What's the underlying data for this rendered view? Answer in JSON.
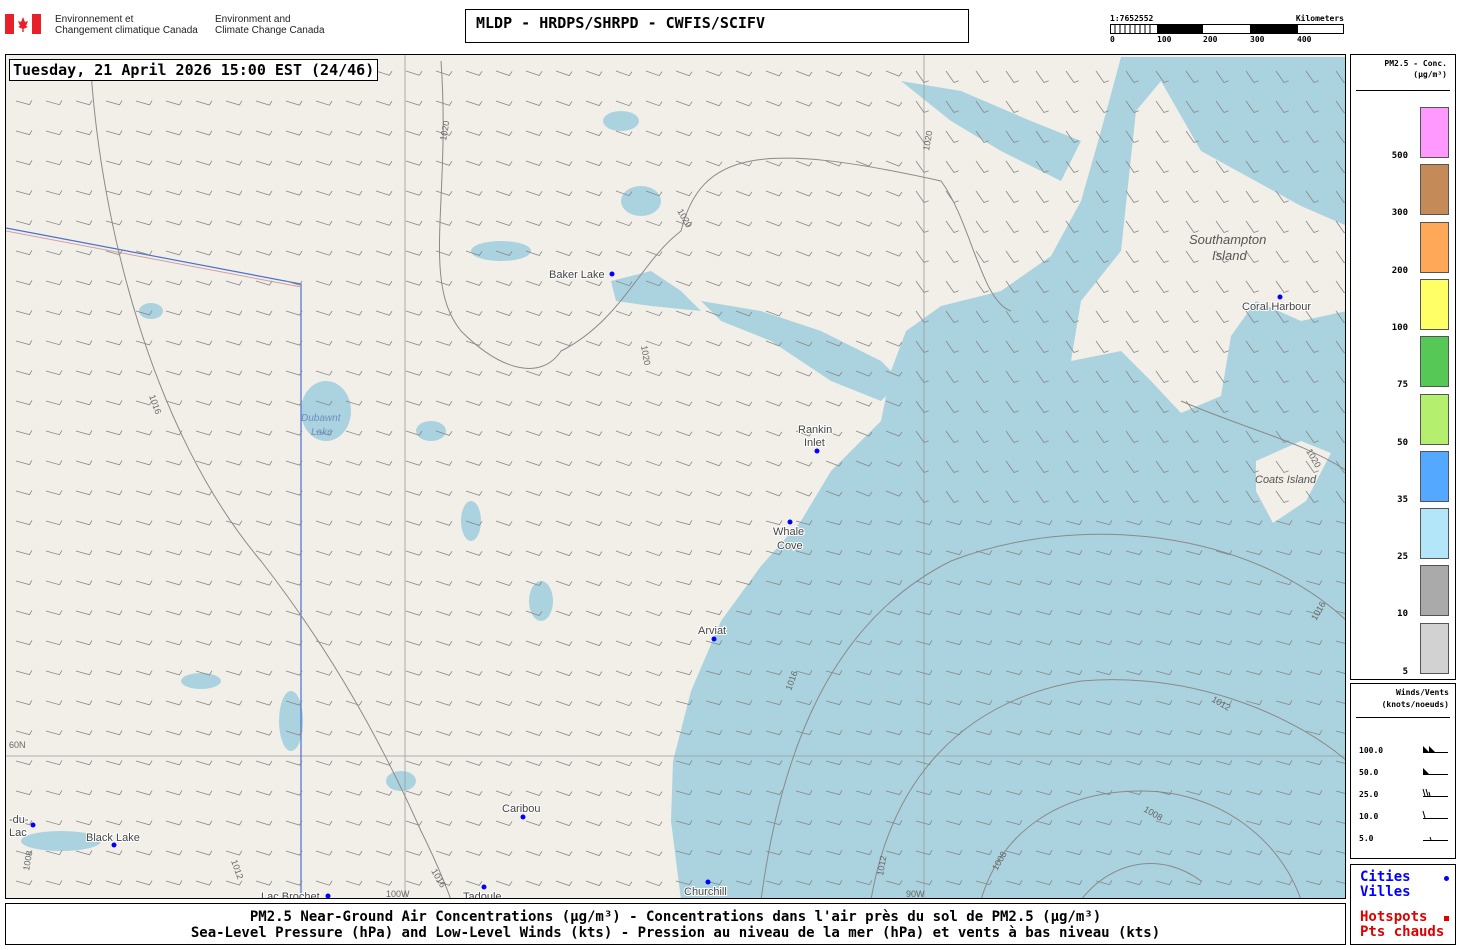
{
  "header": {
    "logo_fr": [
      "Environnement et",
      "Changement climatique Canada"
    ],
    "logo_en": [
      "Environment and",
      "Climate Change Canada"
    ],
    "title": "MLDP - HRDPS/SHRPD - CWFIS/SCIFV",
    "scale": {
      "ratio": "1:7652552",
      "unit": "Kilometers",
      "ticks": [
        "0",
        "100",
        "200",
        "300",
        "400"
      ]
    }
  },
  "map": {
    "timestamp": "Tuesday, 21 April 2026 15:00 EST (24/46)",
    "colors": {
      "land": "#f2efe9",
      "water": "#aad3df",
      "city_dot": "#0000ff"
    },
    "cities": [
      {
        "name": "Baker Lake",
        "lines": [
          "Baker Lake"
        ]
      },
      {
        "name": "Rankin Inlet",
        "lines": [
          "Rankin",
          "Inlet"
        ]
      },
      {
        "name": "Whale Cove",
        "lines": [
          "Whale",
          "Cove"
        ]
      },
      {
        "name": "Arviat",
        "lines": [
          "Arviat"
        ]
      },
      {
        "name": "Coral Harbour",
        "lines": [
          "Coral Harbour"
        ]
      },
      {
        "name": "Churchill",
        "lines": [
          "Churchill"
        ]
      },
      {
        "name": "Caribou",
        "lines": [
          "Caribou"
        ]
      },
      {
        "name": "Tadoule",
        "lines": [
          "Tadoule"
        ]
      },
      {
        "name": "Lac Brochet",
        "lines": [
          "Lac Brochet"
        ]
      },
      {
        "name": "Black Lake",
        "lines": [
          "Black Lake"
        ]
      },
      {
        "name": "du-Lac",
        "lines": [
          "-du-",
          "Lac"
        ]
      }
    ],
    "places": {
      "southampton": [
        "Southampton",
        "Island"
      ],
      "coats": "Coats Island",
      "dubawnt": [
        "Dubawnt",
        "Lake"
      ]
    },
    "isobars": [
      "1020",
      "1020",
      "1020",
      "1020",
      "1016",
      "1016",
      "1016",
      "1016",
      "1012",
      "1012",
      "1012",
      "1008",
      "1008",
      "1008",
      "1008",
      "1020"
    ],
    "gridlines": {
      "lat": "60N",
      "lon1": "100W",
      "lon2": "90W"
    }
  },
  "legend": {
    "pm_title": [
      "PM2.5 - Conc.",
      "(µg/m³)"
    ],
    "pm_levels": [
      {
        "label": "500",
        "color": "#ff99ff"
      },
      {
        "label": "300",
        "color": "#c48a58"
      },
      {
        "label": "200",
        "color": "#ffa858"
      },
      {
        "label": "100",
        "color": "#ffff66"
      },
      {
        "label": "75",
        "color": "#55c855"
      },
      {
        "label": "50",
        "color": "#b4f06e"
      },
      {
        "label": "35",
        "color": "#55a8ff"
      },
      {
        "label": "25",
        "color": "#b4e6fa"
      },
      {
        "label": "10",
        "color": "#aaaaaa"
      },
      {
        "label": "5",
        "color": "#d2d2d2"
      }
    ],
    "wind_title": [
      "Winds/Vents",
      "(knots/noeuds)"
    ],
    "wind_levels": [
      "100.0",
      "50.0",
      "25.0",
      "10.0",
      "5.0"
    ],
    "cities": [
      "Cities",
      "Villes"
    ],
    "hotspots": [
      "Hotspots",
      "Pts chauds"
    ]
  },
  "footer": {
    "line1": "PM2.5 Near-Ground Air Concentrations (µg/m³) - Concentrations dans l'air près du sol de PM2.5 (µg/m³)",
    "line2": "Sea-Level Pressure (hPa) and Low-Level Winds (kts) - Pression au niveau de la mer (hPa) et vents à bas niveau (kts)"
  }
}
